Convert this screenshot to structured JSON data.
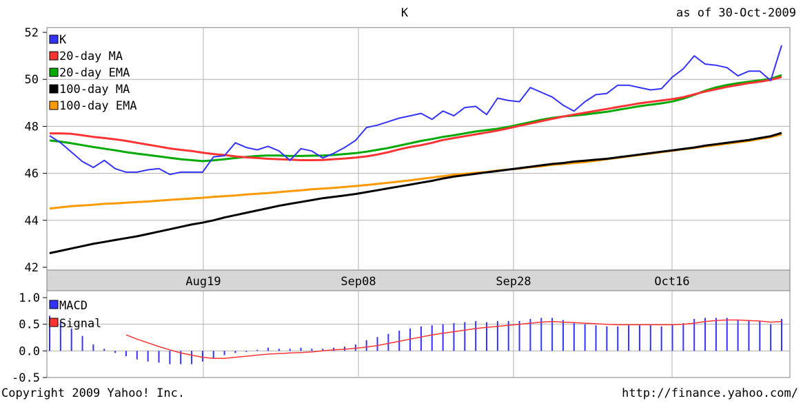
{
  "chart_data": [
    {
      "type": "line",
      "title": "K",
      "date_label": "as of 30-Oct-2009",
      "ylim": [
        42,
        52
      ],
      "y_ticks": [
        "42",
        "44",
        "46",
        "48",
        "50",
        "52"
      ],
      "x_ticks": [
        "Aug19",
        "Sep08",
        "Sep28",
        "Oct16"
      ],
      "grid": true,
      "legend_position": "top-left",
      "n_points": 68,
      "series": [
        {
          "name": "K",
          "color": "#3333ff",
          "values": [
            47.6,
            47.3,
            46.9,
            46.5,
            46.25,
            46.55,
            46.2,
            46.05,
            46.05,
            46.15,
            46.2,
            45.95,
            46.05,
            46.05,
            46.05,
            46.7,
            46.75,
            47.3,
            47.1,
            47.0,
            47.15,
            46.95,
            46.55,
            47.05,
            46.95,
            46.65,
            46.85,
            47.1,
            47.4,
            47.95,
            48.05,
            48.2,
            48.35,
            48.45,
            48.55,
            48.3,
            48.65,
            48.45,
            48.8,
            48.85,
            48.5,
            49.2,
            49.1,
            49.05,
            49.65,
            49.45,
            49.25,
            48.9,
            48.65,
            49.05,
            49.35,
            49.4,
            49.75,
            49.75,
            49.65,
            49.55,
            49.6,
            50.1,
            50.45,
            51.0,
            50.65,
            50.6,
            50.5,
            50.15,
            50.35,
            50.35,
            49.95,
            51.45
          ]
        },
        {
          "name": "20-day MA",
          "color": "#ff3333",
          "values": [
            47.7,
            47.7,
            47.68,
            47.62,
            47.55,
            47.5,
            47.45,
            47.38,
            47.3,
            47.22,
            47.14,
            47.06,
            47.0,
            46.95,
            46.88,
            46.82,
            46.78,
            46.72,
            46.68,
            46.65,
            46.62,
            46.6,
            46.58,
            46.56,
            46.56,
            46.57,
            46.6,
            46.63,
            46.67,
            46.72,
            46.8,
            46.9,
            47.02,
            47.12,
            47.2,
            47.3,
            47.42,
            47.5,
            47.58,
            47.66,
            47.74,
            47.82,
            47.92,
            48.02,
            48.12,
            48.22,
            48.32,
            48.42,
            48.5,
            48.58,
            48.66,
            48.74,
            48.82,
            48.9,
            48.98,
            49.04,
            49.1,
            49.16,
            49.24,
            49.36,
            49.48,
            49.58,
            49.68,
            49.76,
            49.84,
            49.9,
            49.98,
            50.1
          ]
        },
        {
          "name": "20-day EMA",
          "color": "#00aa00",
          "values": [
            47.4,
            47.35,
            47.28,
            47.2,
            47.12,
            47.05,
            46.98,
            46.9,
            46.84,
            46.78,
            46.72,
            46.66,
            46.6,
            46.56,
            46.52,
            46.55,
            46.6,
            46.65,
            46.7,
            46.74,
            46.76,
            46.76,
            46.74,
            46.74,
            46.75,
            46.76,
            46.78,
            46.82,
            46.86,
            46.92,
            47.0,
            47.08,
            47.18,
            47.28,
            47.38,
            47.46,
            47.55,
            47.62,
            47.7,
            47.78,
            47.84,
            47.9,
            47.98,
            48.08,
            48.18,
            48.28,
            48.36,
            48.42,
            48.46,
            48.5,
            48.56,
            48.62,
            48.7,
            48.78,
            48.86,
            48.92,
            48.98,
            49.06,
            49.18,
            49.34,
            49.52,
            49.66,
            49.76,
            49.84,
            49.9,
            49.96,
            50.02,
            50.18
          ]
        },
        {
          "name": "100-day MA",
          "color": "#000000",
          "values": [
            42.6,
            42.7,
            42.8,
            42.9,
            43.0,
            43.08,
            43.16,
            43.24,
            43.32,
            43.42,
            43.52,
            43.62,
            43.72,
            43.82,
            43.9,
            44.0,
            44.12,
            44.22,
            44.32,
            44.42,
            44.52,
            44.62,
            44.7,
            44.78,
            44.86,
            44.94,
            45.0,
            45.06,
            45.12,
            45.2,
            45.28,
            45.36,
            45.44,
            45.52,
            45.6,
            45.68,
            45.78,
            45.86,
            45.92,
            45.98,
            46.04,
            46.1,
            46.16,
            46.22,
            46.28,
            46.34,
            46.4,
            46.44,
            46.5,
            46.54,
            46.58,
            46.62,
            46.68,
            46.74,
            46.8,
            46.86,
            46.92,
            46.98,
            47.04,
            47.1,
            47.18,
            47.24,
            47.3,
            47.36,
            47.42,
            47.5,
            47.58,
            47.72
          ]
        },
        {
          "name": "100-day EMA",
          "color": "#ff9900",
          "values": [
            44.5,
            44.55,
            44.6,
            44.63,
            44.66,
            44.7,
            44.72,
            44.75,
            44.78,
            44.8,
            44.84,
            44.87,
            44.9,
            44.93,
            44.96,
            45.0,
            45.03,
            45.06,
            45.1,
            45.13,
            45.16,
            45.2,
            45.24,
            45.28,
            45.32,
            45.35,
            45.38,
            45.42,
            45.46,
            45.5,
            45.55,
            45.6,
            45.65,
            45.7,
            45.76,
            45.82,
            45.88,
            45.94,
            45.98,
            46.02,
            46.06,
            46.12,
            46.16,
            46.2,
            46.26,
            46.3,
            46.36,
            46.4,
            46.44,
            46.48,
            46.54,
            46.6,
            46.66,
            46.72,
            46.78,
            46.84,
            46.9,
            46.96,
            47.02,
            47.08,
            47.14,
            47.2,
            47.26,
            47.32,
            47.38,
            47.46,
            47.54,
            47.66
          ]
        }
      ]
    },
    {
      "type": "line",
      "ylim": [
        -0.5,
        1.0
      ],
      "y_ticks": [
        "-0.5",
        "0.0",
        "0.5",
        "1.0"
      ],
      "grid": true,
      "legend_position": "top-left",
      "n_points": 68,
      "series": [
        {
          "name": "MACD",
          "color": "#3333ff",
          "style": "bars",
          "values": [
            0.66,
            0.54,
            0.42,
            0.28,
            0.12,
            0.04,
            -0.04,
            -0.1,
            -0.16,
            -0.2,
            -0.22,
            -0.25,
            -0.25,
            -0.25,
            -0.2,
            -0.14,
            -0.08,
            -0.04,
            -0.02,
            0.02,
            0.06,
            0.04,
            0.04,
            0.06,
            0.04,
            0.04,
            0.06,
            0.08,
            0.12,
            0.2,
            0.26,
            0.32,
            0.38,
            0.42,
            0.46,
            0.48,
            0.5,
            0.52,
            0.54,
            0.56,
            0.54,
            0.56,
            0.56,
            0.56,
            0.6,
            0.62,
            0.62,
            0.58,
            0.52,
            0.5,
            0.48,
            0.46,
            0.46,
            0.48,
            0.48,
            0.48,
            0.46,
            0.5,
            0.52,
            0.6,
            0.62,
            0.62,
            0.62,
            0.58,
            0.58,
            0.56,
            0.5,
            0.6
          ]
        },
        {
          "name": "Signal",
          "color": "#ff3333",
          "style": "line",
          "values": [
            null,
            null,
            null,
            null,
            null,
            null,
            null,
            0.3,
            0.22,
            0.15,
            0.08,
            0.02,
            -0.04,
            -0.08,
            -0.12,
            -0.14,
            -0.14,
            -0.12,
            -0.1,
            -0.08,
            -0.06,
            -0.05,
            -0.04,
            -0.03,
            -0.02,
            0.0,
            0.02,
            0.03,
            0.05,
            0.07,
            0.1,
            0.14,
            0.18,
            0.22,
            0.26,
            0.3,
            0.33,
            0.36,
            0.39,
            0.42,
            0.44,
            0.46,
            0.48,
            0.5,
            0.52,
            0.54,
            0.55,
            0.54,
            0.53,
            0.52,
            0.51,
            0.5,
            0.49,
            0.49,
            0.49,
            0.49,
            0.49,
            0.49,
            0.5,
            0.52,
            0.55,
            0.57,
            0.58,
            0.58,
            0.57,
            0.56,
            0.54,
            0.55
          ]
        }
      ]
    }
  ],
  "footer": {
    "copyright": "Copyright 2009 Yahoo! Inc.",
    "url": "http://finance.yahoo.com/"
  }
}
